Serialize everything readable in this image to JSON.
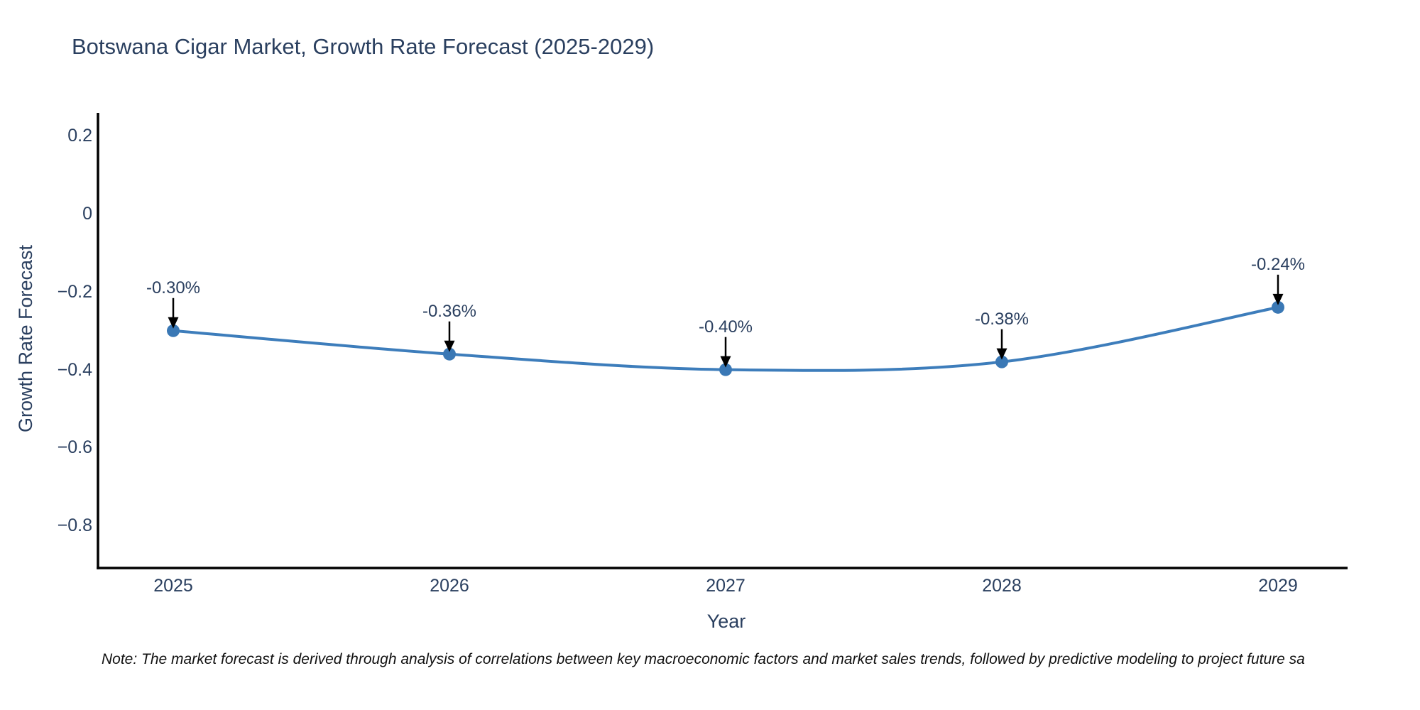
{
  "chart_data": {
    "type": "line",
    "title": "Botswana Cigar Market, Growth Rate Forecast (2025-2029)",
    "xlabel": "Year",
    "ylabel": "Growth Rate Forecast",
    "categories": [
      "2025",
      "2026",
      "2027",
      "2028",
      "2029"
    ],
    "series": [
      {
        "name": "Growth Rate Forecast",
        "values": [
          -0.3,
          -0.36,
          -0.4,
          -0.38,
          -0.24
        ]
      }
    ],
    "point_labels": [
      "-0.30%",
      "-0.36%",
      "-0.40%",
      "-0.38%",
      "-0.24%"
    ],
    "ylim": [
      -0.909,
      0.259
    ],
    "yticks": {
      "values": [
        0.2,
        0,
        -0.2,
        -0.4,
        -0.6,
        -0.8
      ],
      "labels": [
        "0.2",
        "0",
        "−0.2",
        "−0.4",
        "−0.6",
        "−0.8"
      ]
    },
    "grid": false,
    "legend": "none",
    "line_shape": "spline",
    "colors": {
      "line": "#3d7dbb",
      "marker": "#3a78b5",
      "axis": "#000000",
      "text": "#2a3f5f",
      "annotation_arrow": "#000000"
    }
  },
  "note": "Note: The market forecast is derived through analysis of correlations between key macroeconomic factors and market sales trends, followed by predictive modeling to project future sa"
}
